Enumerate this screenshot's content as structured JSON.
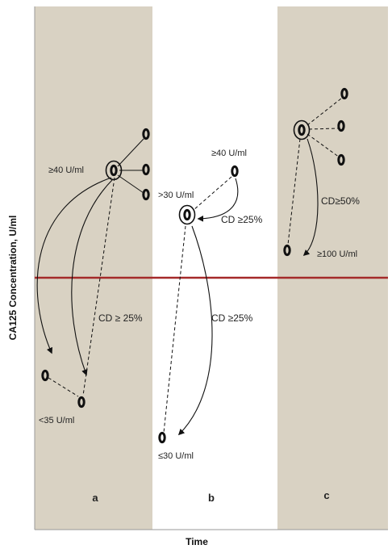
{
  "axes": {
    "y_title": "CA125 Concentration, U/ml",
    "x_title": "Time"
  },
  "colors": {
    "panel_shade": "#d9d2c3",
    "threshold_line": "#a52a2a",
    "ink": "#111111"
  },
  "panels": [
    {
      "letter": "a",
      "shaded": true
    },
    {
      "letter": "b",
      "shaded": false
    },
    {
      "letter": "c",
      "shaded": true
    }
  ],
  "annotations": {
    "a_baseline": "≥40 U/ml",
    "a_decline": "CD ≥ 25%",
    "a_nadir": "<35 U/ml",
    "b_baseline": "≥40 U/ml",
    "b_intermediate": ">30 U/ml",
    "b_first_decline": "CD ≥25%",
    "b_second_decline": "CD ≥25%",
    "b_nadir": "≤30 U/ml",
    "c_decline": "CD≥50%",
    "c_nadir": "≥100 U/ml"
  }
}
